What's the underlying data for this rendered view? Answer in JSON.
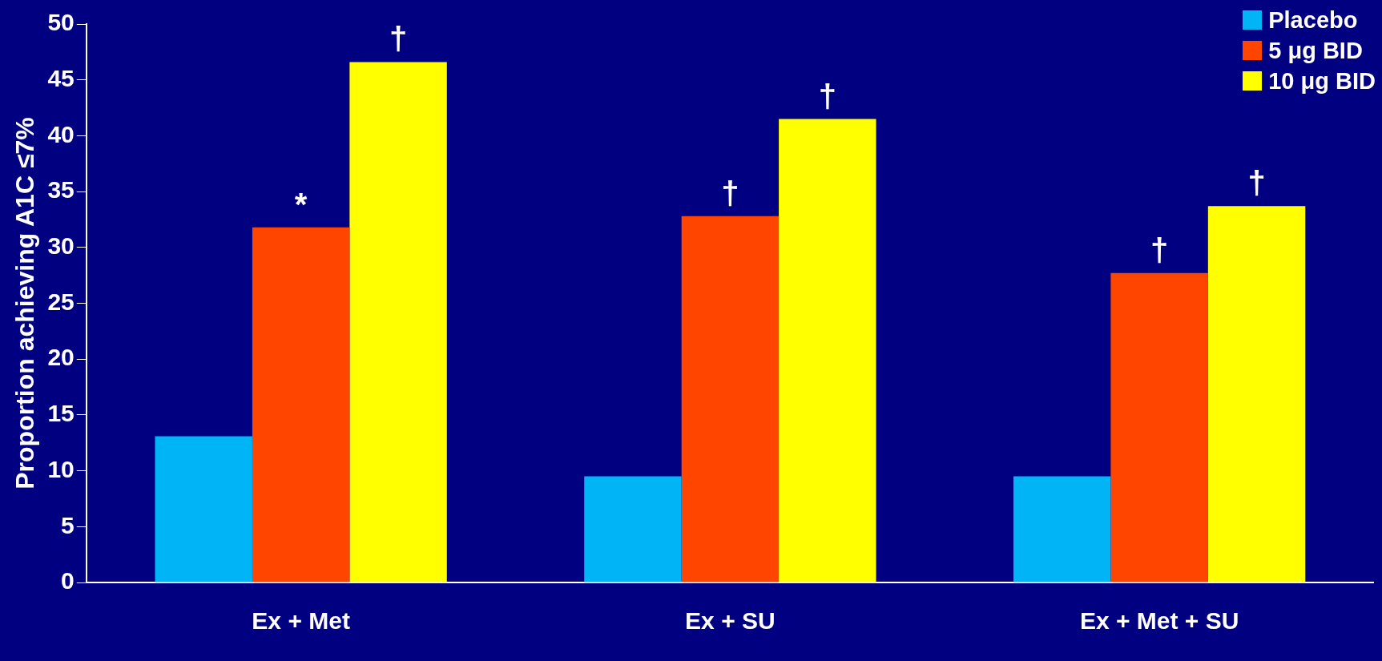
{
  "chart_data": {
    "type": "bar",
    "ylabel": "Proportion achieving A1C ≤7%",
    "categories": [
      "Ex + Met",
      "Ex + SU",
      "Ex + Met + SU"
    ],
    "series": [
      {
        "name": "Placebo",
        "color": "#00b4f5",
        "values": [
          13.1,
          9.5,
          9.5
        ]
      },
      {
        "name": "5 μg BID",
        "color": "#ff4500",
        "values": [
          31.8,
          32.8,
          27.7
        ]
      },
      {
        "name": "10 μg BID",
        "color": "#ffff00",
        "values": [
          46.6,
          41.5,
          33.7
        ]
      }
    ],
    "ylim": [
      0,
      50
    ],
    "yticks": [
      0,
      5,
      10,
      15,
      20,
      25,
      30,
      35,
      40,
      45,
      50
    ],
    "grid": false,
    "legend": "top right",
    "annotations": [
      "*",
      "†",
      "†",
      "†",
      "†",
      "†"
    ]
  }
}
